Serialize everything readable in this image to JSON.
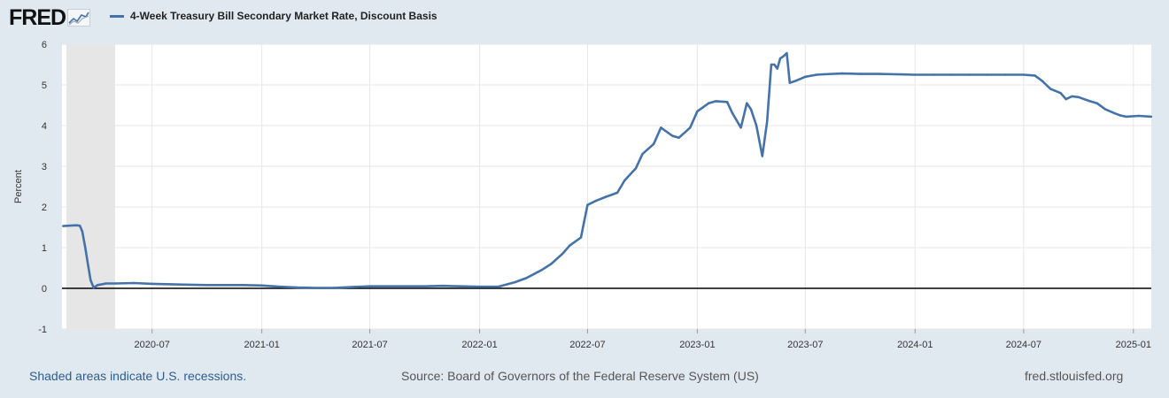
{
  "header": {
    "logo_text": "FRED"
  },
  "colors": {
    "series": "#4572a7",
    "recession_shade": "#e6e6e6",
    "background": "#e1e9f0",
    "plot_background": "#ffffff",
    "zero_line": "#000000",
    "gridline": "#e6e6e6",
    "footer_link": "#2b5d8c"
  },
  "footer": {
    "recession_note": "Shaded areas indicate U.S. recessions.",
    "source": "Source: Board of Governors of the Federal Reserve System (US)",
    "site": "fred.stlouisfed.org"
  },
  "chart_data": {
    "type": "line",
    "title": "",
    "xlabel": "",
    "ylabel": "Percent",
    "ylim": [
      -1,
      6
    ],
    "xlim": [
      "2020-02-01",
      "2025-01-31"
    ],
    "y_ticks": [
      "-1",
      "0",
      "1",
      "2",
      "3",
      "4",
      "5",
      "6"
    ],
    "x_ticks": [
      "2020-07",
      "2021-01",
      "2021-07",
      "2022-01",
      "2022-07",
      "2023-01",
      "2023-07",
      "2024-01",
      "2024-07",
      "2025-01"
    ],
    "grid": true,
    "legend_position": "top-left",
    "recessions": [
      {
        "start": "2020-02-01",
        "end": "2020-04-30"
      }
    ],
    "series": [
      {
        "name": "4-Week Treasury Bill Secondary Market Rate, Discount Basis",
        "x": [
          "2020-02-03",
          "2020-02-25",
          "2020-03-02",
          "2020-03-06",
          "2020-03-11",
          "2020-03-16",
          "2020-03-20",
          "2020-03-25",
          "2020-04-01",
          "2020-04-15",
          "2020-05-01",
          "2020-06-01",
          "2020-07-01",
          "2020-08-01",
          "2020-09-01",
          "2020-10-01",
          "2020-11-01",
          "2020-12-01",
          "2021-01-01",
          "2021-02-01",
          "2021-03-01",
          "2021-04-01",
          "2021-05-01",
          "2021-06-01",
          "2021-07-01",
          "2021-08-01",
          "2021-09-01",
          "2021-10-01",
          "2021-11-01",
          "2021-12-01",
          "2022-01-01",
          "2022-02-01",
          "2022-03-01",
          "2022-03-20",
          "2022-04-15",
          "2022-05-01",
          "2022-05-20",
          "2022-06-01",
          "2022-06-20",
          "2022-07-01",
          "2022-07-15",
          "2022-08-01",
          "2022-08-20",
          "2022-09-01",
          "2022-09-20",
          "2022-10-01",
          "2022-10-20",
          "2022-11-01",
          "2022-11-20",
          "2022-12-01",
          "2022-12-20",
          "2023-01-01",
          "2023-01-20",
          "2023-02-01",
          "2023-02-20",
          "2023-03-01",
          "2023-03-15",
          "2023-03-25",
          "2023-04-01",
          "2023-04-10",
          "2023-04-20",
          "2023-04-28",
          "2023-05-05",
          "2023-05-10",
          "2023-05-15",
          "2023-05-20",
          "2023-05-25",
          "2023-05-31",
          "2023-06-05",
          "2023-06-15",
          "2023-07-01",
          "2023-07-20",
          "2023-08-01",
          "2023-09-01",
          "2023-10-01",
          "2023-11-01",
          "2023-12-01",
          "2024-01-01",
          "2024-02-01",
          "2024-03-01",
          "2024-04-01",
          "2024-05-01",
          "2024-06-01",
          "2024-07-01",
          "2024-07-20",
          "2024-08-01",
          "2024-08-15",
          "2024-09-01",
          "2024-09-10",
          "2024-09-20",
          "2024-10-01",
          "2024-10-20",
          "2024-11-01",
          "2024-11-15",
          "2024-12-01",
          "2024-12-10",
          "2024-12-20",
          "2025-01-10",
          "2025-01-31"
        ],
        "values": [
          1.53,
          1.55,
          1.54,
          1.4,
          1.0,
          0.55,
          0.2,
          0.02,
          0.08,
          0.12,
          0.12,
          0.13,
          0.11,
          0.1,
          0.09,
          0.08,
          0.08,
          0.08,
          0.07,
          0.04,
          0.02,
          0.01,
          0.01,
          0.03,
          0.05,
          0.05,
          0.05,
          0.05,
          0.06,
          0.05,
          0.04,
          0.04,
          0.15,
          0.25,
          0.45,
          0.6,
          0.85,
          1.05,
          1.25,
          2.05,
          2.15,
          2.25,
          2.35,
          2.65,
          2.95,
          3.3,
          3.55,
          3.95,
          3.75,
          3.7,
          3.95,
          4.35,
          4.55,
          4.6,
          4.58,
          4.3,
          3.95,
          4.55,
          4.4,
          4.0,
          3.25,
          4.1,
          5.5,
          5.5,
          5.4,
          5.65,
          5.7,
          5.78,
          5.05,
          5.1,
          5.2,
          5.25,
          5.26,
          5.28,
          5.27,
          5.27,
          5.26,
          5.25,
          5.25,
          5.25,
          5.25,
          5.25,
          5.25,
          5.25,
          5.23,
          5.1,
          4.9,
          4.8,
          4.65,
          4.72,
          4.7,
          4.6,
          4.55,
          4.4,
          4.3,
          4.25,
          4.22,
          4.24,
          4.22
        ]
      }
    ]
  }
}
